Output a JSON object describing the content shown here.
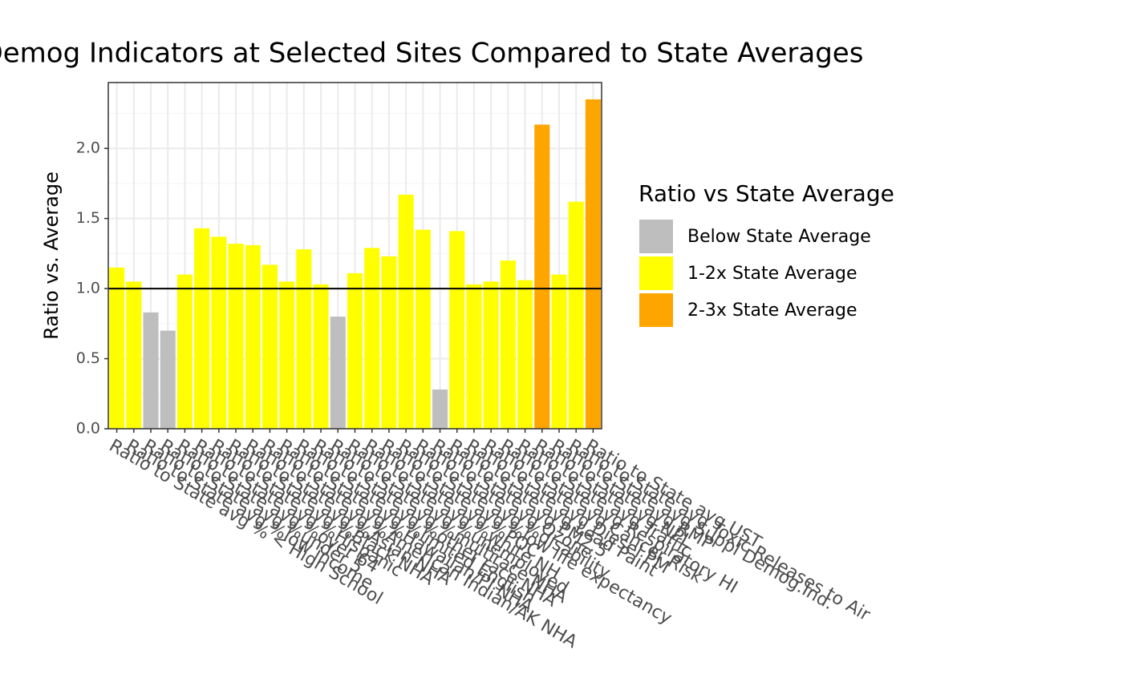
{
  "chart_data": {
    "type": "bar",
    "title": "Demog Indicators at Selected Sites Compared to State Averages",
    "y_label": "Ratio vs. Average",
    "categories": [
      "Ratio to State avg % < High School",
      "Ratio to State avg %low income",
      "Ratio to State avg %under 5",
      "Ratio to State avg %over 64",
      "Ratio to State avg %Hispanic",
      "Ratio to State avg %Black NHA",
      "Ratio to State avg %Asian NHA",
      "Ratio to State avg %American Indian/AK NHA",
      "Ratio to State avg %Hawaiian/PI NHA",
      "Ratio to State avg %limited English",
      "Ratio to State avg %other race NHA",
      "Ratio to State avg %multirace NHA",
      "Ratio to State avg %unemployed",
      "Ratio to State avg %white NH",
      "Ratio to State avg %POC",
      "Ratio to State avg %low life expectancy",
      "Ratio to State avg %disability",
      "Ratio to State avg Ozone",
      "Ratio to State avg PM2.5",
      "Ratio to State avg Lead Paint",
      "Ratio to State avg Diesel PM",
      "Ratio to State avg Cancer Risk",
      "Ratio to State avg Respiratory HI",
      "Ratio to State avg Traffic",
      "Ratio to State avg NPL",
      "Ratio to State avg RMP",
      "Ratio to State avg Suppl Demog.Ind.",
      "Ratio to State avg Toxic Releases to Air",
      "Ratio to State avg UST"
    ],
    "values": [
      1.15,
      1.05,
      0.83,
      0.7,
      1.1,
      1.43,
      1.37,
      1.32,
      1.31,
      1.17,
      1.05,
      1.28,
      1.03,
      0.8,
      1.11,
      1.29,
      1.23,
      1.67,
      1.42,
      0.28,
      1.41,
      1.03,
      1.05,
      1.2,
      1.06,
      2.17,
      1.1,
      1.62,
      2.35
    ],
    "colors": [
      "#FFFF00",
      "#FFFF00",
      "#BEBEBE",
      "#BEBEBE",
      "#FFFF00",
      "#FFFF00",
      "#FFFF00",
      "#FFFF00",
      "#FFFF00",
      "#FFFF00",
      "#FFFF00",
      "#FFFF00",
      "#FFFF00",
      "#BEBEBE",
      "#FFFF00",
      "#FFFF00",
      "#FFFF00",
      "#FFFF00",
      "#FFFF00",
      "#BEBEBE",
      "#FFFF00",
      "#FFFF00",
      "#FFFF00",
      "#FFFF00",
      "#FFFF00",
      "#FFA500",
      "#FFFF00",
      "#FFFF00",
      "#FFA500"
    ],
    "hline": 1,
    "ylim": [
      0,
      2.47
    ],
    "yticks": [
      {
        "value": 0,
        "label": "0.0"
      },
      {
        "value": 0.5,
        "label": "0.5"
      },
      {
        "value": 1,
        "label": "1.0"
      },
      {
        "value": 1.5,
        "label": "1.5"
      },
      {
        "value": 2,
        "label": "2.0"
      }
    ],
    "grid": true,
    "legend": {
      "title": "Ratio vs State Average",
      "position": "right",
      "items": [
        {
          "name": "Below State Average",
          "color": "#BEBEBE"
        },
        {
          "name": "1-2x State Average",
          "color": "#FFFF00"
        },
        {
          "name": "2-3x State Average",
          "color": "#FFA500"
        }
      ]
    }
  }
}
